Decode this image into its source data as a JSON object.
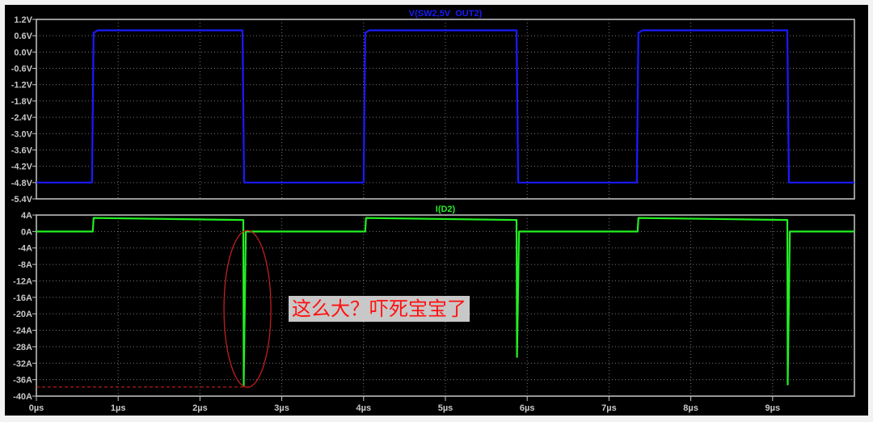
{
  "chart_data": [
    {
      "type": "line",
      "title": "V(SW2,5V_OUT2)",
      "color": "#1a1aff",
      "xlim": [
        0,
        10
      ],
      "ylim": [
        -5.4,
        1.2
      ],
      "yticks": [
        "1.2V",
        "0.6V",
        "0.0V",
        "-0.6V",
        "-1.2V",
        "-1.8V",
        "-2.4V",
        "-3.0V",
        "-3.6V",
        "-4.2V",
        "-4.8V",
        "-5.4V"
      ],
      "ytick_values": [
        1.2,
        0.6,
        0.0,
        -0.6,
        -1.2,
        -1.8,
        -2.4,
        -3.0,
        -3.6,
        -4.2,
        -4.8,
        -5.4
      ],
      "grid": true,
      "series": [
        {
          "name": "V(SW2,5V_OUT2)",
          "points": [
            [
              0,
              -4.8
            ],
            [
              0.68,
              -4.8
            ],
            [
              0.7,
              0.7
            ],
            [
              0.75,
              0.8
            ],
            [
              2.52,
              0.8
            ],
            [
              2.54,
              -4.8
            ],
            [
              4.0,
              -4.8
            ],
            [
              4.02,
              0.7
            ],
            [
              4.07,
              0.8
            ],
            [
              5.87,
              0.8
            ],
            [
              5.89,
              -4.8
            ],
            [
              7.34,
              -4.8
            ],
            [
              7.36,
              0.7
            ],
            [
              7.41,
              0.8
            ],
            [
              9.18,
              0.8
            ],
            [
              9.2,
              -4.8
            ],
            [
              10,
              -4.8
            ]
          ]
        }
      ]
    },
    {
      "type": "line",
      "title": "I(D2)",
      "color": "#22ee22",
      "xlim": [
        0,
        10
      ],
      "ylim": [
        -40,
        4
      ],
      "yticks": [
        "4A",
        "0A",
        "-4A",
        "-8A",
        "-12A",
        "-16A",
        "-20A",
        "-24A",
        "-28A",
        "-32A",
        "-36A",
        "-40A"
      ],
      "ytick_values": [
        4,
        0,
        -4,
        -8,
        -12,
        -16,
        -20,
        -24,
        -28,
        -32,
        -36,
        -40
      ],
      "xticks": [
        "0µs",
        "1µs",
        "2µs",
        "3µs",
        "4µs",
        "5µs",
        "6µs",
        "7µs",
        "8µs",
        "9µs"
      ],
      "xtick_values": [
        0,
        1,
        2,
        3,
        4,
        5,
        6,
        7,
        8,
        9
      ],
      "grid": true,
      "series": [
        {
          "name": "I(D2)",
          "points": [
            [
              0,
              0
            ],
            [
              0.69,
              0
            ],
            [
              0.7,
              3.3
            ],
            [
              2.53,
              2.8
            ],
            [
              2.535,
              -37.5
            ],
            [
              2.56,
              0
            ],
            [
              4.02,
              0
            ],
            [
              4.03,
              3.3
            ],
            [
              5.87,
              2.8
            ],
            [
              5.875,
              -30.5
            ],
            [
              5.9,
              0
            ],
            [
              7.35,
              0
            ],
            [
              7.36,
              3.3
            ],
            [
              9.18,
              2.8
            ],
            [
              9.185,
              -37.2
            ],
            [
              9.21,
              0
            ],
            [
              10,
              0
            ]
          ]
        }
      ],
      "annotations": {
        "text": "这么大？吓死宝宝了",
        "peak_level": -37.8,
        "peak_time": 2.53,
        "color": "#ff1010"
      }
    }
  ]
}
